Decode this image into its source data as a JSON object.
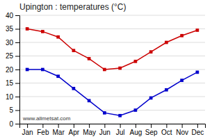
{
  "chart_data": {
    "type": "line",
    "title": "Upington : temperatures (°C)",
    "categories": [
      "Jan",
      "Feb",
      "Mar",
      "Apr",
      "May",
      "Jun",
      "Jul",
      "Aug",
      "Sep",
      "Oct",
      "Nov",
      "Dec"
    ],
    "series": [
      {
        "color": "#cc0000",
        "marker": "square",
        "values": [
          35,
          34,
          32,
          27,
          24,
          20,
          20.5,
          23,
          26.5,
          30,
          32.5,
          34.5
        ]
      },
      {
        "color": "#0000cc",
        "marker": "square",
        "values": [
          20,
          20,
          17.5,
          13,
          8.5,
          4,
          3,
          5,
          9.5,
          12.5,
          16,
          19
        ]
      }
    ],
    "ylim": [
      0,
      40
    ],
    "yticks": [
      0,
      5,
      10,
      15,
      20,
      25,
      30,
      35,
      40
    ],
    "grid": true,
    "annotations": [
      "www.allmetsat.com"
    ]
  }
}
